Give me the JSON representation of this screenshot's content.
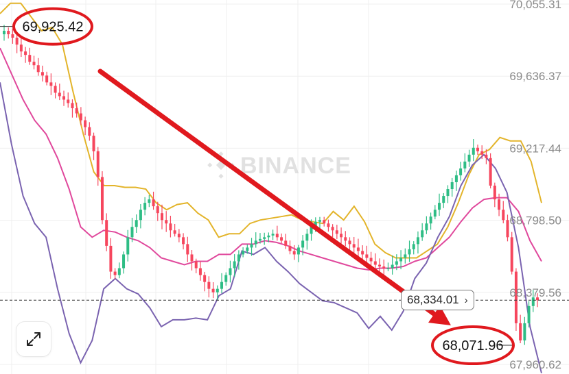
{
  "chart_data": {
    "type": "candlestick",
    "source_watermark": "BINANCE",
    "y_axis": {
      "ticks": [
        "70,055.31",
        "69,636.37",
        "69,217.44",
        "68,798.50",
        "68,379.56",
        "67,960.62"
      ],
      "tick_values": [
        70055.31,
        69636.37,
        69217.44,
        68798.5,
        68379.56,
        67960.62
      ]
    },
    "current_price": {
      "label": "68,334.01",
      "value": 68334.01
    },
    "annotations": {
      "high": {
        "label": "69,925.42",
        "value": 69925.42
      },
      "low": {
        "label": "68,071.96",
        "value": 68071.96
      },
      "trend_arrow": "down"
    },
    "colors": {
      "up": "#2ebd85",
      "down": "#f6465d",
      "bb_upper": "#e3b42a",
      "bb_middle": "#e0489c",
      "bb_lower": "#7a63b0",
      "annotation": "#e0191e"
    },
    "series": {
      "closes": [
        69900,
        69880,
        69860,
        69820,
        69780,
        69760,
        69720,
        69700,
        69660,
        69640,
        69600,
        69580,
        69540,
        69520,
        69500,
        69480,
        69450,
        69420,
        69380,
        69340,
        69290,
        69200,
        69050,
        68800,
        68650,
        68500,
        68480,
        68520,
        68600,
        68700,
        68760,
        68800,
        68860,
        68900,
        68920,
        68880,
        68840,
        68800,
        68780,
        68740,
        68720,
        68700,
        68660,
        68600,
        68560,
        68520,
        68480,
        68440,
        68400,
        68380,
        68400,
        68440,
        68480,
        68520,
        68560,
        68600,
        68620,
        68640,
        68660,
        68680,
        68690,
        68700,
        68710,
        68720,
        68700,
        68680,
        68650,
        68620,
        68600,
        68640,
        68680,
        68720,
        68760,
        68790,
        68800,
        68780,
        68760,
        68740,
        68720,
        68700,
        68680,
        68660,
        68640,
        68620,
        68600,
        68580,
        68560,
        68540,
        68530,
        68520,
        68520,
        68540,
        68560,
        68580,
        68600,
        68630,
        68660,
        68700,
        68740,
        68780,
        68820,
        68860,
        68900,
        68940,
        68980,
        69020,
        69060,
        69100,
        69140,
        69180,
        69220,
        69200,
        69180,
        69160,
        69000,
        68920,
        68860,
        68800,
        68700,
        68500,
        68200,
        68100,
        68200,
        68300,
        68350,
        68334
      ],
      "bollinger_upper": [
        70000,
        70060,
        70060,
        69980,
        69900,
        69920,
        69820,
        69550,
        69300,
        69080,
        69000,
        69000,
        68990,
        68990,
        68980,
        68900,
        68860,
        68890,
        68900,
        68840,
        68800,
        68700,
        68720,
        68720,
        68780,
        68800,
        68810,
        68820,
        68830,
        68800,
        68790,
        68780,
        68850,
        68800,
        68880,
        68790,
        68660,
        68610,
        68580,
        68580,
        68580,
        68620,
        68660,
        68760,
        68900,
        69060,
        69180,
        69210,
        69280,
        69260,
        69260,
        69140,
        68900
      ],
      "bollinger_middle": [
        69800,
        69650,
        69500,
        69380,
        69300,
        69160,
        68980,
        68760,
        68700,
        68740,
        68730,
        68700,
        68680,
        68640,
        68580,
        68560,
        68540,
        68560,
        68560,
        68600,
        68600,
        68660,
        68660,
        68680,
        68670,
        68650,
        68620,
        68600,
        68580,
        68560,
        68540,
        68520,
        68510,
        68520,
        68520,
        68530,
        68560,
        68580,
        68640,
        68700,
        68790,
        68870,
        68920,
        68930,
        68930,
        68850,
        68680,
        68560
      ]
    }
  }
}
